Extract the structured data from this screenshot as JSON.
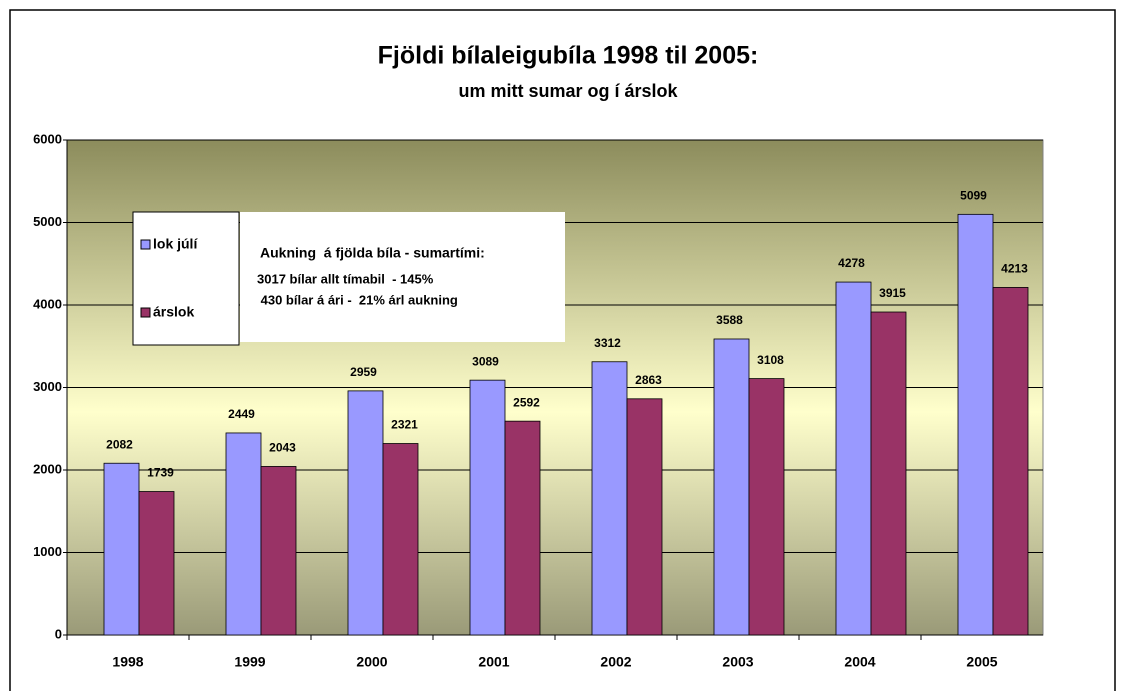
{
  "chart_data": {
    "type": "bar",
    "title": "Fjöldi bílaleigubíla 1998 til 2005:",
    "subtitle": "um mitt sumar og í árslok",
    "categories": [
      "1998",
      "1999",
      "2000",
      "2001",
      "2002",
      "2003",
      "2004",
      "2005"
    ],
    "series": [
      {
        "name": "lok júlí",
        "color": "#9999ff",
        "values": [
          2082,
          2449,
          2959,
          3089,
          3312,
          3588,
          4278,
          5099
        ]
      },
      {
        "name": "árslok",
        "color": "#993366",
        "values": [
          1739,
          2043,
          2321,
          2592,
          2863,
          3108,
          3915,
          4213
        ]
      }
    ],
    "ylim": [
      0,
      6000
    ],
    "yticks": [
      0,
      1000,
      2000,
      3000,
      4000,
      5000,
      6000
    ],
    "grid": true,
    "annotations": [
      "Aukning  á fjölda bíla - sumartími:",
      "3017 bílar allt tímabil  - 145%",
      " 430 bílar á ári -  21% árl aukning"
    ]
  }
}
